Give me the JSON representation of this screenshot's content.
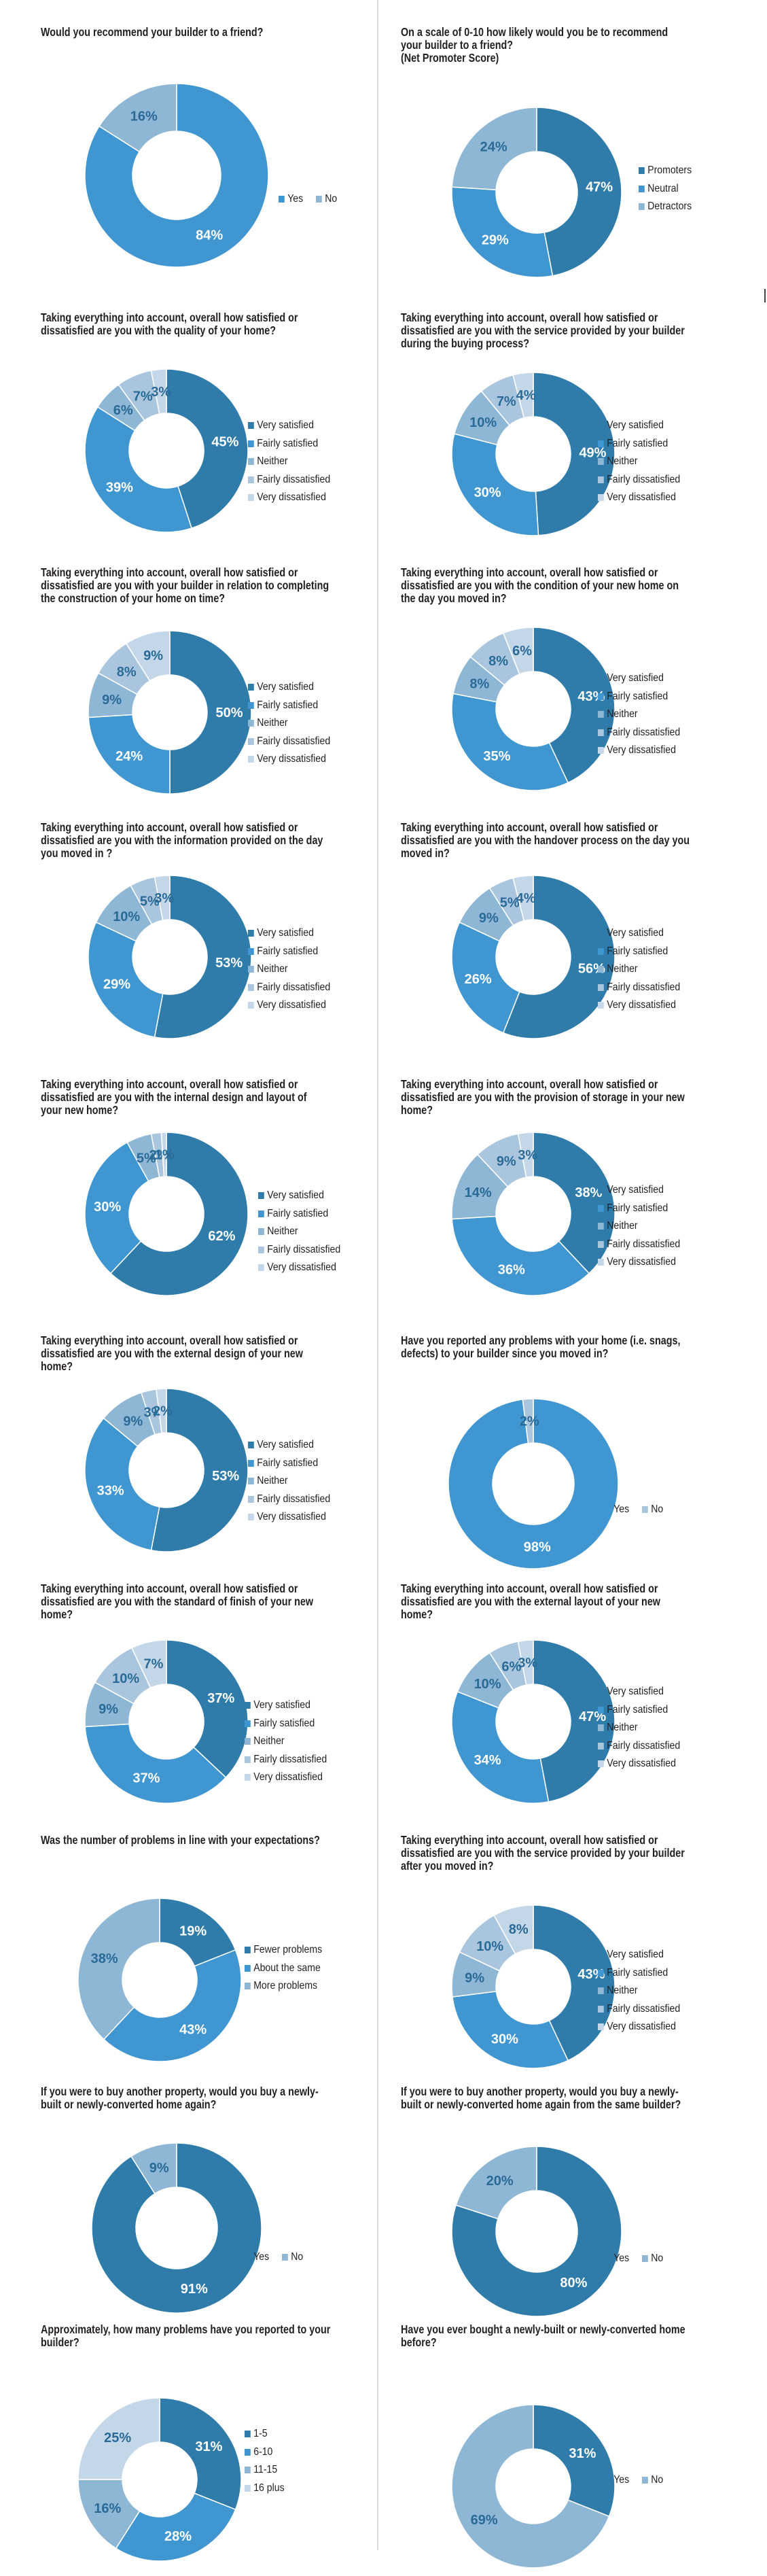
{
  "colors": {
    "dark": "#2f7cab",
    "mid": "#3f96d1",
    "light": "#8eb6d5",
    "lighter": "#a9c6de",
    "lightest": "#c4d7e8",
    "label_white": "#ffffff",
    "label_dark": "#2a6a96"
  },
  "chart_data": [
    {
      "type": "pie",
      "title": "Would you recommend your builder to a friend?",
      "categories": [
        "Yes",
        "No"
      ],
      "values": [
        84,
        16
      ]
    },
    {
      "type": "pie",
      "title": "On a scale of 0-10 how likely would you be to recommend your builder to a friend?\n(Net Promoter Score)",
      "categories": [
        "Promoters",
        "Neutral",
        "Detractors"
      ],
      "values": [
        47,
        29,
        24
      ]
    },
    {
      "type": "pie",
      "title": "Taking everything into account, overall how satisfied or dissatisfied are you with the quality of your home?",
      "categories": [
        "Very satisfied",
        "Fairly satisfied",
        "Neither",
        "Fairly dissatisfied",
        "Very dissatisfied"
      ],
      "values": [
        45,
        39,
        6,
        7,
        3
      ]
    },
    {
      "type": "pie",
      "title": "Taking everything into account, overall how satisfied or dissatisfied are you with the service provided by your builder during the buying process?",
      "categories": [
        "Very satisfied",
        "Fairly satisfied",
        "Neither",
        "Fairly dissatisfied",
        "Very dissatisfied"
      ],
      "values": [
        49,
        30,
        10,
        7,
        4
      ]
    },
    {
      "type": "pie",
      "title": "Taking everything into account, overall how satisfied or dissatisfied are you with your builder in relation to completing the construction of your home on time?",
      "categories": [
        "Very satisfied",
        "Fairly satisfied",
        "Neither",
        "Fairly dissatisfied",
        "Very dissatisfied"
      ],
      "values": [
        50,
        24,
        9,
        8,
        9
      ]
    },
    {
      "type": "pie",
      "title": "Taking everything into account, overall how satisfied or dissatisfied are you with the condition of your new home on the day you moved in?",
      "categories": [
        "Very satisfied",
        "Fairly satisfied",
        "Neither",
        "Fairly dissatisfied",
        "Very dissatisfied"
      ],
      "values": [
        43,
        35,
        8,
        8,
        6
      ]
    },
    {
      "type": "pie",
      "title": "Taking everything into account, overall how satisfied or dissatisfied are you with the information provided on the day you moved in ?",
      "categories": [
        "Very satisfied",
        "Fairly satisfied",
        "Neither",
        "Fairly dissatisfied",
        "Very dissatisfied"
      ],
      "values": [
        53,
        29,
        10,
        5,
        3
      ]
    },
    {
      "type": "pie",
      "title": "Taking everything into account, overall how satisfied or dissatisfied are you with the handover process on the day you moved in?",
      "categories": [
        "Very satisfied",
        "Fairly satisfied",
        "Neither",
        "Fairly dissatisfied",
        "Very dissatisfied"
      ],
      "values": [
        56,
        26,
        9,
        5,
        4
      ]
    },
    {
      "type": "pie",
      "title": "Taking everything into account, overall how satisfied or dissatisfied are you with the internal design and layout of your new home?",
      "categories": [
        "Very satisfied",
        "Fairly satisfied",
        "Neither",
        "Fairly dissatisfied",
        "Very dissatisfied"
      ],
      "values": [
        62,
        30,
        5,
        2,
        1
      ]
    },
    {
      "type": "pie",
      "title": "Taking everything into account, overall how satisfied or dissatisfied are you with the provision of storage in your new home?",
      "categories": [
        "Very satisfied",
        "Fairly satisfied",
        "Neither",
        "Fairly dissatisfied",
        "Very dissatisfied"
      ],
      "values": [
        38,
        36,
        14,
        9,
        3
      ]
    },
    {
      "type": "pie",
      "title": "Taking everything into account, overall how satisfied or dissatisfied are you with the external design of your new home?",
      "categories": [
        "Very satisfied",
        "Fairly satisfied",
        "Neither",
        "Fairly dissatisfied",
        "Very dissatisfied"
      ],
      "values": [
        53,
        33,
        9,
        3,
        2
      ]
    },
    {
      "type": "pie",
      "title": "Have you reported any problems with your home (i.e. snags, defects) to your builder since you moved in?",
      "categories": [
        "Yes",
        "No"
      ],
      "values": [
        98,
        2
      ]
    },
    {
      "type": "pie",
      "title": "Taking everything into account, overall how satisfied or dissatisfied are you with the standard of finish of your new home?",
      "categories": [
        "Very satisfied",
        "Fairly satisfied",
        "Neither",
        "Fairly dissatisfied",
        "Very dissatisfied"
      ],
      "values": [
        37,
        37,
        9,
        10,
        7
      ]
    },
    {
      "type": "pie",
      "title": "Taking everything into account, overall how satisfied or dissatisfied are you with the external layout of your new home?",
      "categories": [
        "Very satisfied",
        "Fairly satisfied",
        "Neither",
        "Fairly dissatisfied",
        "Very dissatisfied"
      ],
      "values": [
        47,
        34,
        10,
        6,
        3
      ]
    },
    {
      "type": "pie",
      "title": "Was the number of problems in line with your expectations?",
      "categories": [
        "Fewer problems",
        "About the same",
        "More problems"
      ],
      "values": [
        19,
        43,
        38
      ]
    },
    {
      "type": "pie",
      "title": "Taking everything into account, overall how satisfied or dissatisfied are you with the service provided by your builder after you moved in?",
      "categories": [
        "Very satisfied",
        "Fairly satisfied",
        "Neither",
        "Fairly dissatisfied",
        "Very dissatisfied"
      ],
      "values": [
        43,
        30,
        9,
        10,
        8
      ]
    },
    {
      "type": "pie",
      "title": "If you were to buy another property, would you buy a newly-built or newly-converted home again?",
      "categories": [
        "Yes",
        "No"
      ],
      "values": [
        91,
        9
      ]
    },
    {
      "type": "pie",
      "title": "If you were to buy another property, would you buy a newly-built or newly-converted home again from the same builder?",
      "categories": [
        "Yes",
        "No"
      ],
      "values": [
        80,
        20
      ]
    },
    {
      "type": "pie",
      "title": "Approximately, how many problems have you reported to your builder?",
      "categories": [
        "1-5",
        "6-10",
        "11-15",
        "16 plus"
      ],
      "values": [
        31,
        28,
        16,
        25
      ]
    },
    {
      "type": "pie",
      "title": "Have you ever bought a newly-built or newly-converted home before?",
      "categories": [
        "Yes",
        "No"
      ],
      "values": [
        31,
        69
      ]
    }
  ]
}
